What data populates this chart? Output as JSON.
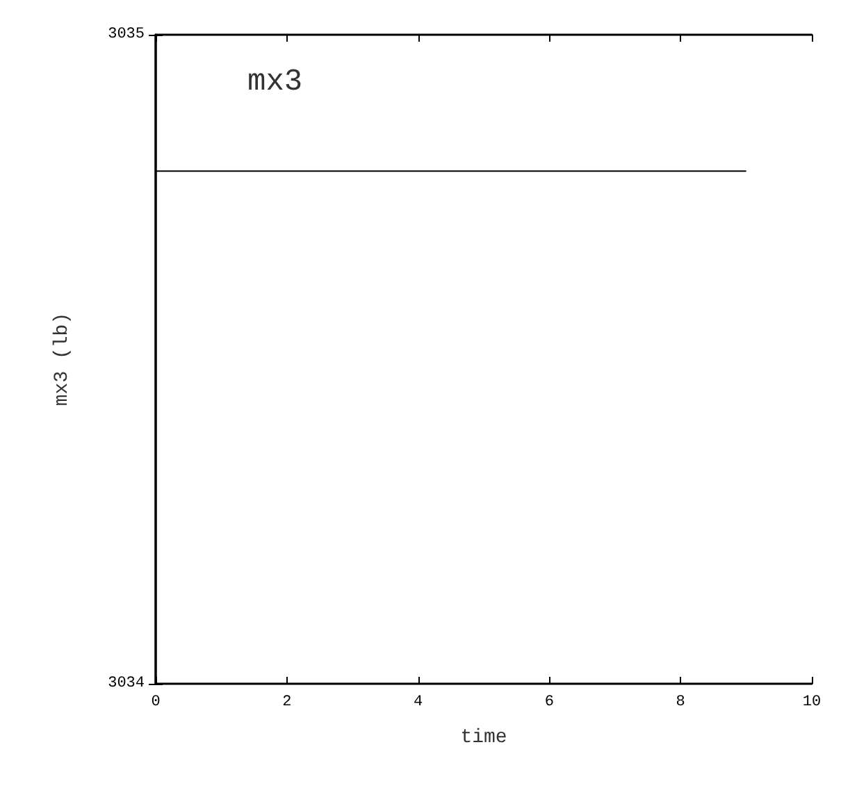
{
  "chart_data": {
    "type": "line",
    "title": "mx3",
    "xlabel": "time",
    "ylabel": "mx3 (lb)",
    "x": [
      0,
      9
    ],
    "series": [
      {
        "color": "#000000",
        "values": [
          3034.79,
          3034.79
        ]
      }
    ],
    "xlim": [
      0,
      10
    ],
    "xticks": [
      0,
      2,
      4,
      6,
      8,
      10
    ],
    "ylim": [
      3034,
      3035
    ],
    "yticks": [
      3034,
      3035
    ],
    "grid": false,
    "marker": "none",
    "line_style": "solid"
  }
}
